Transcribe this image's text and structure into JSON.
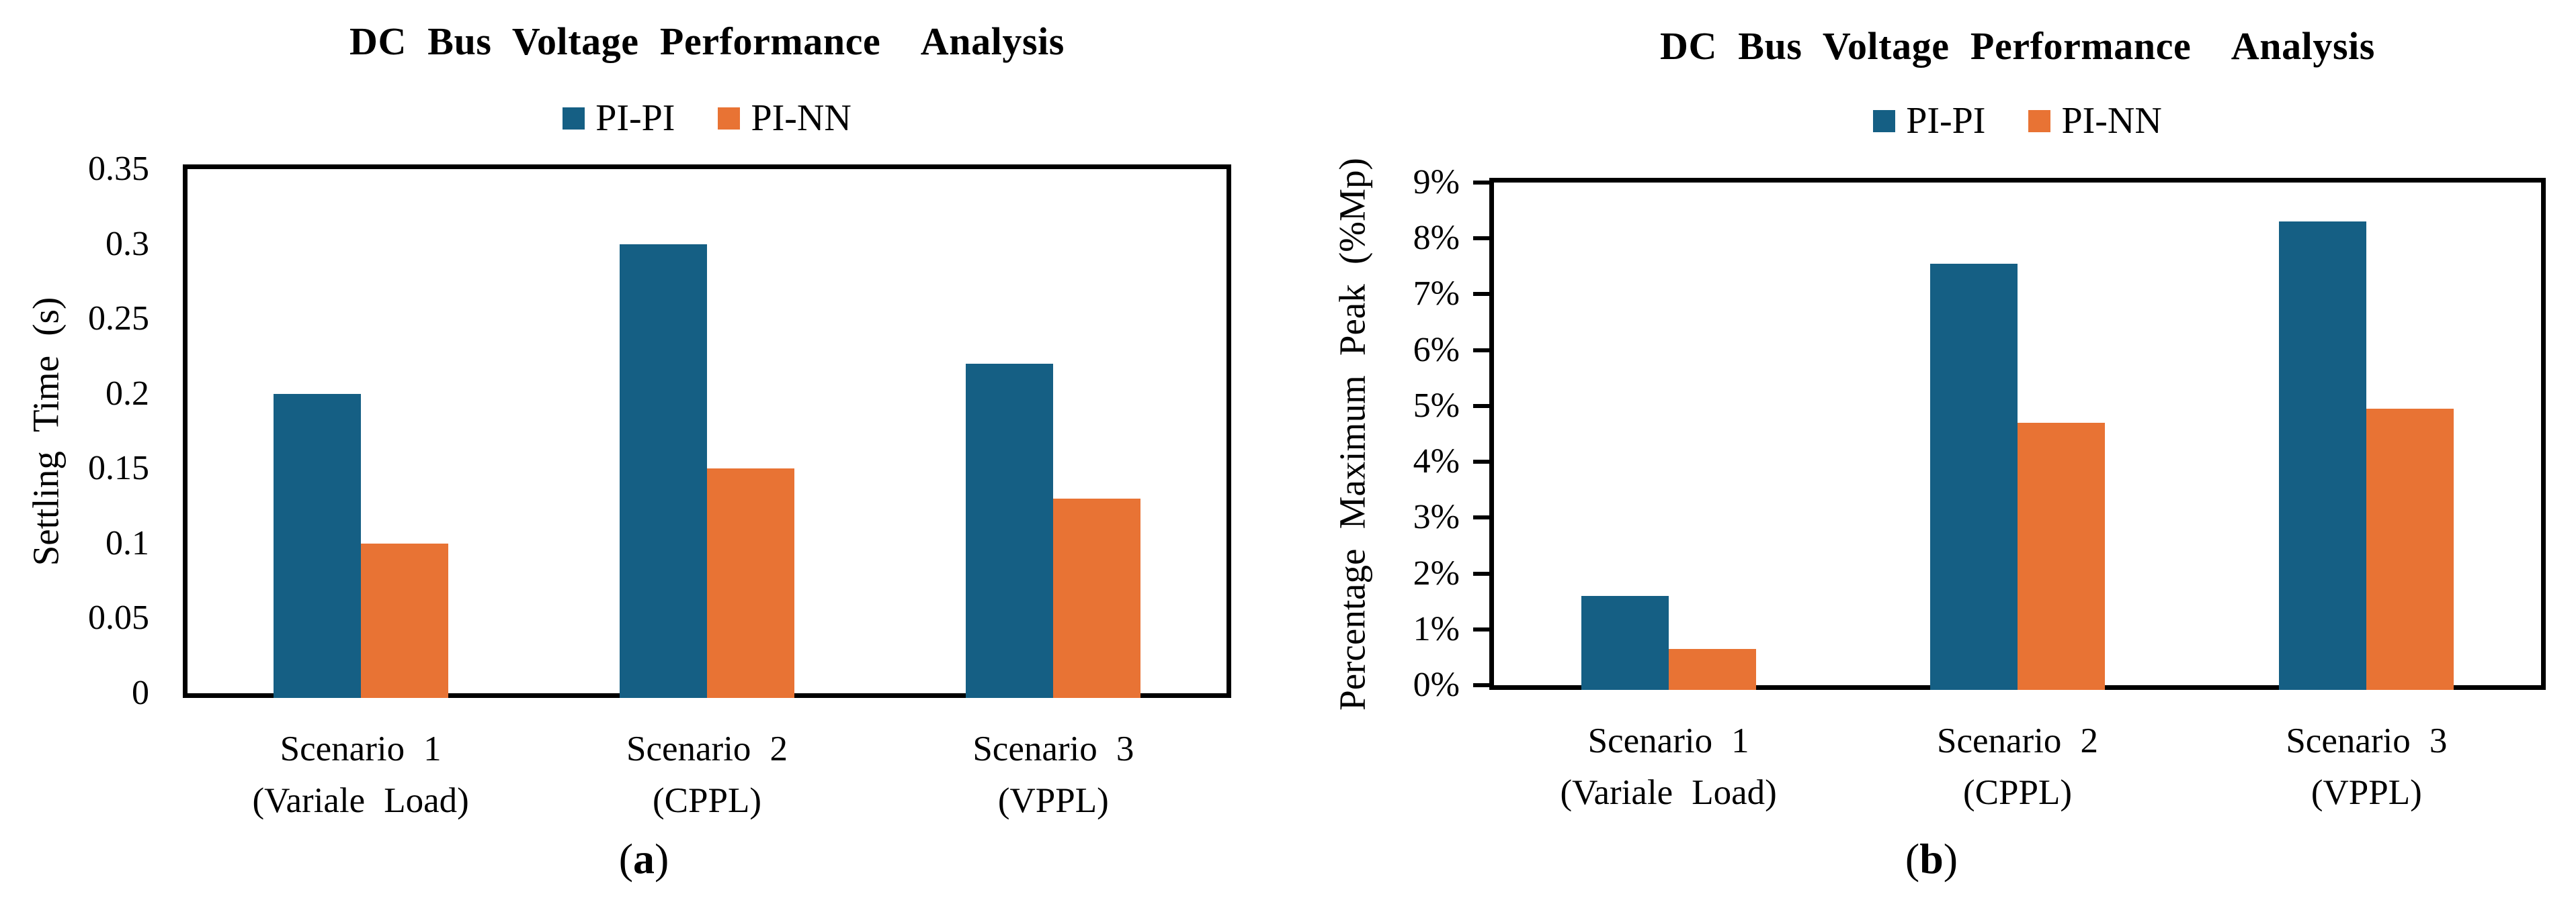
{
  "chart_data": [
    {
      "type": "bar",
      "title": "DC Bus Voltage Performance  Analysis",
      "ylabel": "Settling Time (s)",
      "categories": [
        [
          "Scenario 1",
          "(Variale Load)"
        ],
        [
          "Scenario 2",
          "(CPPL)"
        ],
        [
          "Scenario 3",
          "(VPPL)"
        ]
      ],
      "series": [
        {
          "name": "PI-PI",
          "color": "#155F84",
          "values": [
            0.2,
            0.3,
            0.22
          ]
        },
        {
          "name": "PI-NN",
          "color": "#E87334",
          "values": [
            0.1,
            0.15,
            0.13
          ]
        }
      ],
      "ylim": [
        0,
        0.35
      ],
      "ytick_step": 0.05,
      "tick_suffix": "",
      "y_tick_marks": false,
      "grid": false,
      "legend_position": "top",
      "caption_letter": "a",
      "caption_open": "(",
      "caption_close": ")"
    },
    {
      "type": "bar",
      "title": "DC Bus Voltage Performance  Analysis",
      "ylabel": "Percentage Maximum Peak (%Mp)",
      "categories": [
        [
          "Scenario 1",
          "(Variale Load)"
        ],
        [
          "Scenario 2",
          "(CPPL)"
        ],
        [
          "Scenario 3",
          "(VPPL)"
        ]
      ],
      "series": [
        {
          "name": "PI-PI",
          "color": "#155F84",
          "values": [
            1.6,
            7.55,
            8.3
          ]
        },
        {
          "name": "PI-NN",
          "color": "#E87334",
          "values": [
            0.65,
            4.7,
            4.95
          ]
        }
      ],
      "ylim": [
        0,
        9
      ],
      "ytick_step": 1,
      "tick_suffix": "%",
      "y_tick_marks": true,
      "grid": false,
      "legend_position": "top",
      "caption_letter": "b",
      "caption_open": "(",
      "caption_close": ")"
    }
  ]
}
